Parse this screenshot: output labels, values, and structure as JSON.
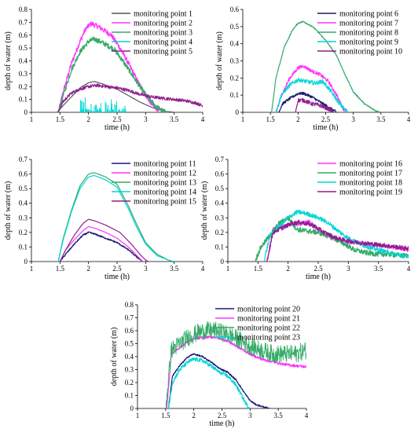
{
  "chart_data": [
    {
      "type": "line",
      "xlabel": "time (h)",
      "ylabel": "depth of water (m)",
      "xlim": [
        1,
        4
      ],
      "ylim": [
        0,
        0.8
      ],
      "xticks": [
        "1",
        "1.5",
        "2",
        "2.5",
        "3",
        "3.5",
        "4"
      ],
      "yticks": [
        "0",
        "0.1",
        "0.2",
        "0.3",
        "0.4",
        "0.5",
        "0.6",
        "0.7",
        "0.8"
      ],
      "legend": "top-right",
      "series": [
        {
          "name": "monitoring point 1",
          "color": "#555555",
          "noise": 0,
          "x": [
            1.45,
            1.55,
            1.7,
            1.85,
            2,
            2.1,
            2.25,
            2.5,
            2.7,
            2.9,
            3.1,
            3.3,
            3.5
          ],
          "y": [
            0,
            0.05,
            0.12,
            0.19,
            0.23,
            0.24,
            0.22,
            0.18,
            0.13,
            0.08,
            0.04,
            0.01,
            0
          ]
        },
        {
          "name": "monitoring point 2",
          "color": "#ff33ff",
          "noise": 0.02,
          "x": [
            1.47,
            1.55,
            1.7,
            1.85,
            1.95,
            2.05,
            2.2,
            2.4,
            2.55,
            2.7,
            2.85,
            3,
            3.15,
            3.3
          ],
          "y": [
            0,
            0.15,
            0.38,
            0.55,
            0.65,
            0.69,
            0.66,
            0.6,
            0.5,
            0.38,
            0.25,
            0.13,
            0.04,
            0
          ]
        },
        {
          "name": "monitoring point 3",
          "color": "#33aa66",
          "noise": 0.02,
          "x": [
            1.47,
            1.55,
            1.7,
            1.85,
            2,
            2.1,
            2.25,
            2.45,
            2.6,
            2.75,
            2.9,
            3.05,
            3.2,
            3.3,
            3.4
          ],
          "y": [
            0,
            0.12,
            0.33,
            0.47,
            0.55,
            0.57,
            0.54,
            0.49,
            0.4,
            0.3,
            0.2,
            0.11,
            0.04,
            0.01,
            0
          ]
        },
        {
          "name": "monitoring point 4",
          "color": "#00d6d6",
          "noise": 0,
          "spikes": true,
          "x": [
            1.85,
            2.2,
            2.65
          ],
          "y": [
            0,
            0,
            0
          ]
        },
        {
          "name": "monitoring point 5",
          "color": "#8e1f8e",
          "noise": 0.012,
          "x": [
            1.47,
            1.55,
            1.7,
            1.85,
            2,
            2.15,
            2.3,
            2.5,
            2.7,
            2.9,
            3.1,
            3.3,
            3.5,
            3.7,
            3.9,
            4
          ],
          "y": [
            0,
            0.08,
            0.15,
            0.18,
            0.2,
            0.21,
            0.2,
            0.19,
            0.17,
            0.14,
            0.12,
            0.11,
            0.1,
            0.09,
            0.07,
            0.05
          ]
        }
      ]
    },
    {
      "type": "line",
      "xlabel": "time (h)",
      "ylabel": "depth of water (m)",
      "xlim": [
        1,
        4
      ],
      "ylim": [
        0,
        0.6
      ],
      "xticks": [
        "1",
        "1.5",
        "2",
        "2.5",
        "3",
        "3.5",
        "4"
      ],
      "yticks": [
        "0",
        "0.1",
        "0.2",
        "0.3",
        "0.4",
        "0.5",
        "0.6"
      ],
      "legend": "top-right",
      "series": [
        {
          "name": "monitoring point 6",
          "color": "#1a1a6e",
          "noise": 0.008,
          "x": [
            1.65,
            1.72,
            1.85,
            2,
            2.1,
            2.25,
            2.4,
            2.55,
            2.7
          ],
          "y": [
            0,
            0.05,
            0.08,
            0.11,
            0.11,
            0.09,
            0.06,
            0.03,
            0
          ]
        },
        {
          "name": "monitoring point 7",
          "color": "#ff33ff",
          "noise": 0.01,
          "x": [
            1.6,
            1.7,
            1.85,
            2,
            2.1,
            2.25,
            2.4,
            2.55,
            2.7,
            2.85
          ],
          "y": [
            0,
            0.1,
            0.2,
            0.26,
            0.27,
            0.24,
            0.22,
            0.18,
            0.1,
            0
          ]
        },
        {
          "name": "monitoring point 8",
          "color": "#33aa66",
          "noise": 0.004,
          "x": [
            1.52,
            1.6,
            1.75,
            1.9,
            2,
            2.1,
            2.3,
            2.5,
            2.7,
            2.85,
            3,
            3.2,
            3.4,
            3.5
          ],
          "y": [
            0,
            0.2,
            0.38,
            0.48,
            0.52,
            0.53,
            0.49,
            0.42,
            0.33,
            0.22,
            0.12,
            0.05,
            0.01,
            0
          ]
        },
        {
          "name": "monitoring point 9",
          "color": "#00d6d6",
          "noise": 0.012,
          "x": [
            1.6,
            1.7,
            1.85,
            2,
            2.15,
            2.3,
            2.45,
            2.6,
            2.75,
            2.9
          ],
          "y": [
            0,
            0.1,
            0.16,
            0.19,
            0.18,
            0.17,
            0.18,
            0.12,
            0.05,
            0
          ]
        },
        {
          "name": "monitoring point 10",
          "color": "#8e1f8e",
          "noise": 0.012,
          "x": [
            1.95,
            2,
            2.1,
            2.25,
            2.4,
            2.55,
            2.65
          ],
          "y": [
            0,
            0.07,
            0.07,
            0.05,
            0.04,
            0.02,
            0
          ]
        }
      ]
    },
    {
      "type": "line",
      "xlabel": "time (h)",
      "ylabel": "depth of water (m)",
      "xlim": [
        1,
        4
      ],
      "ylim": [
        0,
        0.7
      ],
      "xticks": [
        "1",
        "1.5",
        "2",
        "2.5",
        "3",
        "3.5",
        "4"
      ],
      "yticks": [
        "0",
        "0.1",
        "0.2",
        "0.3",
        "0.4",
        "0.5",
        "0.6",
        "0.7"
      ],
      "legend": "top-right",
      "series": [
        {
          "name": "monitoring point 11",
          "color": "#1a1a6e",
          "noise": 0.005,
          "x": [
            1.5,
            1.6,
            1.75,
            1.9,
            2,
            2.1,
            2.3,
            2.5,
            2.7,
            2.85,
            2.95
          ],
          "y": [
            0,
            0.05,
            0.12,
            0.18,
            0.2,
            0.19,
            0.16,
            0.13,
            0.08,
            0.03,
            0
          ]
        },
        {
          "name": "monitoring point 12",
          "color": "#ff33ff",
          "noise": 0,
          "x": [
            1.5,
            1.6,
            1.75,
            1.9,
            2,
            2.1,
            2.3,
            2.5,
            2.7,
            2.85,
            2.95
          ],
          "y": [
            0,
            0.08,
            0.15,
            0.21,
            0.24,
            0.23,
            0.2,
            0.16,
            0.1,
            0.04,
            0
          ]
        },
        {
          "name": "monitoring point 13",
          "color": "#33aa66",
          "noise": 0,
          "x": [
            1.47,
            1.55,
            1.7,
            1.85,
            2,
            2.1,
            2.3,
            2.5,
            2.7,
            2.85,
            3,
            3.2,
            3.4,
            3.5
          ],
          "y": [
            0,
            0.15,
            0.35,
            0.52,
            0.6,
            0.61,
            0.58,
            0.53,
            0.38,
            0.25,
            0.13,
            0.05,
            0.01,
            0
          ]
        },
        {
          "name": "monitoring point 14",
          "color": "#00d6d6",
          "noise": 0,
          "x": [
            1.47,
            1.55,
            1.7,
            1.85,
            2,
            2.1,
            2.3,
            2.5,
            2.7,
            2.85,
            3,
            3.2,
            3.4,
            3.5
          ],
          "y": [
            0,
            0.14,
            0.34,
            0.5,
            0.58,
            0.59,
            0.56,
            0.51,
            0.36,
            0.23,
            0.12,
            0.04,
            0.01,
            0
          ]
        },
        {
          "name": "monitoring point 15",
          "color": "#8e1f8e",
          "noise": 0,
          "x": [
            1.5,
            1.6,
            1.75,
            1.9,
            2,
            2.1,
            2.3,
            2.55,
            2.75,
            2.9,
            3,
            3.05
          ],
          "y": [
            0,
            0.08,
            0.18,
            0.26,
            0.29,
            0.28,
            0.25,
            0.2,
            0.12,
            0.05,
            0.01,
            0
          ]
        }
      ]
    },
    {
      "type": "line",
      "xlabel": "time (h)",
      "ylabel": "depth of water (m)",
      "xlim": [
        1,
        4
      ],
      "ylim": [
        0,
        0.7
      ],
      "xticks": [
        "1",
        "1.5",
        "2",
        "2.5",
        "3",
        "3.5",
        "4"
      ],
      "yticks": [
        "0",
        "0.1",
        "0.2",
        "0.3",
        "0.4",
        "0.5",
        "0.6",
        "0.7"
      ],
      "legend": "top-right",
      "series": [
        {
          "name": "monitoring point 16",
          "color": "#ff33ff",
          "noise": 0.015,
          "x": [
            1.65,
            1.75,
            1.9,
            2.05,
            2.2,
            2.35,
            2.5,
            2.7,
            2.9,
            3.1,
            3.3,
            3.5,
            3.7,
            3.9,
            4
          ],
          "y": [
            0,
            0.22,
            0.24,
            0.26,
            0.26,
            0.27,
            0.22,
            0.17,
            0.15,
            0.13,
            0.12,
            0.11,
            0.1,
            0.09,
            0.08
          ]
        },
        {
          "name": "monitoring point 17",
          "color": "#33aa66",
          "noise": 0.018,
          "x": [
            1.45,
            1.55,
            1.7,
            1.85,
            2,
            2.15,
            2.3,
            2.5,
            2.7,
            2.9,
            3.1,
            3.3,
            3.5,
            3.7,
            3.9,
            4
          ],
          "y": [
            0,
            0.1,
            0.18,
            0.26,
            0.3,
            0.22,
            0.21,
            0.2,
            0.17,
            0.13,
            0.08,
            0.06,
            0.05,
            0.05,
            0.04,
            0.04
          ]
        },
        {
          "name": "monitoring point 18",
          "color": "#00d6d6",
          "noise": 0.015,
          "x": [
            1.6,
            1.7,
            1.85,
            2,
            2.15,
            2.3,
            2.5,
            2.65,
            2.8,
            3,
            3.2,
            3.4,
            3.6,
            3.8,
            4
          ],
          "y": [
            0,
            0.18,
            0.24,
            0.3,
            0.34,
            0.33,
            0.3,
            0.27,
            0.22,
            0.16,
            0.12,
            0.09,
            0.07,
            0.05,
            0.03
          ]
        },
        {
          "name": "monitoring point 19",
          "color": "#8e1f8e",
          "noise": 0.015,
          "x": [
            1.65,
            1.75,
            1.9,
            2.05,
            2.2,
            2.4,
            2.6,
            2.8,
            3,
            3.2,
            3.4,
            3.6,
            3.8,
            4
          ],
          "y": [
            0,
            0.2,
            0.23,
            0.26,
            0.27,
            0.25,
            0.2,
            0.16,
            0.14,
            0.13,
            0.12,
            0.11,
            0.1,
            0.09
          ]
        }
      ]
    },
    {
      "type": "line",
      "xlabel": "time (h)",
      "ylabel": "depth of water (m)",
      "xlim": [
        1,
        4
      ],
      "ylim": [
        0,
        0.8
      ],
      "xticks": [
        "1",
        "1.5",
        "2",
        "2.5",
        "3",
        "3.5",
        "4"
      ],
      "yticks": [
        "0",
        "0.1",
        "0.2",
        "0.3",
        "0.4",
        "0.5",
        "0.6",
        "0.7",
        "0.8"
      ],
      "legend": "top-right",
      "series": [
        {
          "name": "monitoring point 20",
          "color": "#1a1a6e",
          "noise": 0.006,
          "x": [
            1.55,
            1.62,
            1.75,
            1.9,
            2,
            2.15,
            2.3,
            2.45,
            2.6,
            2.75,
            2.9,
            3,
            3.1,
            3.25,
            3.35
          ],
          "y": [
            0,
            0.25,
            0.33,
            0.4,
            0.42,
            0.4,
            0.36,
            0.31,
            0.28,
            0.22,
            0.12,
            0.06,
            0.03,
            0.01,
            0
          ]
        },
        {
          "name": "monitoring point 21",
          "color": "#ff33ff",
          "noise": 0.01,
          "x": [
            1.52,
            1.6,
            1.75,
            1.9,
            2.05,
            2.2,
            2.4,
            2.6,
            2.8,
            3,
            3.2,
            3.4,
            3.6,
            3.8,
            4
          ],
          "y": [
            0,
            0.42,
            0.47,
            0.52,
            0.54,
            0.55,
            0.55,
            0.52,
            0.47,
            0.42,
            0.38,
            0.36,
            0.34,
            0.33,
            0.32
          ]
        },
        {
          "name": "monitoring point 22",
          "color": "#33aa66",
          "noise": 0.07,
          "x": [
            1.5,
            1.6,
            1.75,
            1.9,
            2.05,
            2.2,
            2.4,
            2.6,
            2.8,
            3,
            3.2,
            3.4,
            3.6,
            3.8,
            4
          ],
          "y": [
            0,
            0.45,
            0.5,
            0.55,
            0.58,
            0.6,
            0.6,
            0.57,
            0.53,
            0.48,
            0.45,
            0.42,
            0.42,
            0.42,
            0.45
          ]
        },
        {
          "name": "monitoring point 23",
          "color": "#00d6d6",
          "noise": 0.015,
          "x": [
            1.55,
            1.62,
            1.75,
            1.9,
            2,
            2.15,
            2.3,
            2.45,
            2.6,
            2.75,
            2.85,
            2.95,
            3
          ],
          "y": [
            0,
            0.2,
            0.3,
            0.36,
            0.38,
            0.37,
            0.33,
            0.28,
            0.25,
            0.18,
            0.1,
            0.02,
            0
          ]
        }
      ]
    }
  ]
}
